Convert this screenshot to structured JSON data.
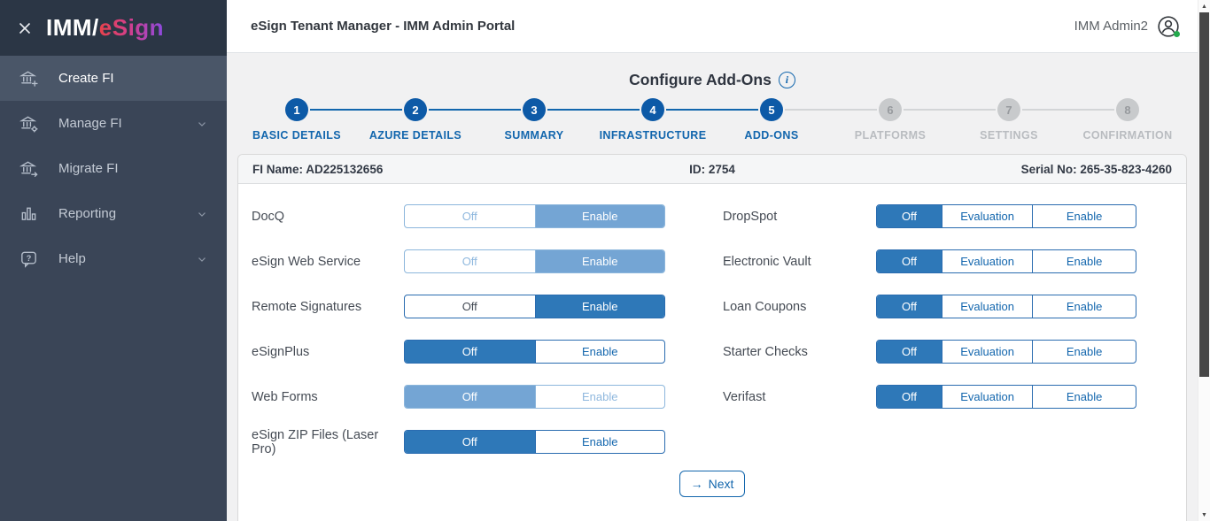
{
  "colors": {
    "accent_blue": "#0d5aa7",
    "toggle_selected_blue": "#2e78b8",
    "toggle_muted_blue": "#74a5d4",
    "sidebar_bg": "#3a4557",
    "status_green": "#24a94c"
  },
  "sidebar": {
    "logo_imm": "IMM/",
    "logo_esign": "eSign",
    "items": [
      {
        "label": "Create FI",
        "icon": "bank-plus-icon",
        "active": true,
        "chevron": false
      },
      {
        "label": "Manage FI",
        "icon": "bank-gear-icon",
        "active": false,
        "chevron": true
      },
      {
        "label": "Migrate FI",
        "icon": "bank-arrow-icon",
        "active": false,
        "chevron": false
      },
      {
        "label": "Reporting",
        "icon": "bar-chart-icon",
        "active": false,
        "chevron": true
      },
      {
        "label": "Help",
        "icon": "help-bubble-icon",
        "active": false,
        "chevron": true
      }
    ]
  },
  "header": {
    "title": "eSign Tenant Manager - IMM Admin Portal",
    "user_name": "IMM Admin2"
  },
  "page": {
    "title": "Configure Add-Ons",
    "info_glyph": "i"
  },
  "stepper": [
    {
      "num": "1",
      "label": "BASIC DETAILS",
      "state": "done"
    },
    {
      "num": "2",
      "label": "AZURE DETAILS",
      "state": "done"
    },
    {
      "num": "3",
      "label": "SUMMARY",
      "state": "done"
    },
    {
      "num": "4",
      "label": "INFRASTRUCTURE",
      "state": "done"
    },
    {
      "num": "5",
      "label": "ADD-ONS",
      "state": "current"
    },
    {
      "num": "6",
      "label": "PLATFORMS",
      "state": "upcoming"
    },
    {
      "num": "7",
      "label": "SETTINGS",
      "state": "upcoming"
    },
    {
      "num": "8",
      "label": "CONFIRMATION",
      "state": "upcoming"
    }
  ],
  "fi_info": {
    "fi_name": "FI Name: AD225132656",
    "id": "ID: 2754",
    "serial": "Serial No: 265-35-823-4260"
  },
  "addons": {
    "left": [
      {
        "label": "DocQ",
        "muted": true,
        "options": [
          {
            "label": "Off",
            "selected": false
          },
          {
            "label": "Enable",
            "selected": true
          }
        ]
      },
      {
        "label": "eSign Web Service",
        "muted": true,
        "options": [
          {
            "label": "Off",
            "selected": false
          },
          {
            "label": "Enable",
            "selected": true
          }
        ]
      },
      {
        "label": "Remote Signatures",
        "muted": false,
        "options": [
          {
            "label": "Off",
            "selected": false,
            "dark": true
          },
          {
            "label": "Enable",
            "selected": true
          }
        ]
      },
      {
        "label": "eSignPlus",
        "muted": false,
        "options": [
          {
            "label": "Off",
            "selected": true
          },
          {
            "label": "Enable",
            "selected": false
          }
        ]
      },
      {
        "label": "Web Forms",
        "muted": true,
        "options": [
          {
            "label": "Off",
            "selected": true
          },
          {
            "label": "Enable",
            "selected": false
          }
        ]
      },
      {
        "label": "eSign ZIP Files (Laser Pro)",
        "muted": false,
        "options": [
          {
            "label": "Off",
            "selected": true
          },
          {
            "label": "Enable",
            "selected": false
          }
        ]
      }
    ],
    "right": [
      {
        "label": "DropSpot",
        "muted": false,
        "options": [
          {
            "label": "Off",
            "selected": true
          },
          {
            "label": "Evaluation",
            "selected": false
          },
          {
            "label": "Enable",
            "selected": false
          }
        ]
      },
      {
        "label": "Electronic Vault",
        "muted": false,
        "options": [
          {
            "label": "Off",
            "selected": true
          },
          {
            "label": "Evaluation",
            "selected": false
          },
          {
            "label": "Enable",
            "selected": false
          }
        ]
      },
      {
        "label": "Loan Coupons",
        "muted": false,
        "options": [
          {
            "label": "Off",
            "selected": true
          },
          {
            "label": "Evaluation",
            "selected": false
          },
          {
            "label": "Enable",
            "selected": false
          }
        ]
      },
      {
        "label": "Starter Checks",
        "muted": false,
        "options": [
          {
            "label": "Off",
            "selected": true
          },
          {
            "label": "Evaluation",
            "selected": false
          },
          {
            "label": "Enable",
            "selected": false
          }
        ]
      },
      {
        "label": "Verifast",
        "muted": false,
        "options": [
          {
            "label": "Off",
            "selected": true
          },
          {
            "label": "Evaluation",
            "selected": false
          },
          {
            "label": "Enable",
            "selected": false
          }
        ]
      }
    ]
  },
  "footer": {
    "next_arrow": "→",
    "next_label": "Next"
  },
  "scrollbar": {
    "up_glyph": "▲",
    "down_glyph": "▼"
  }
}
